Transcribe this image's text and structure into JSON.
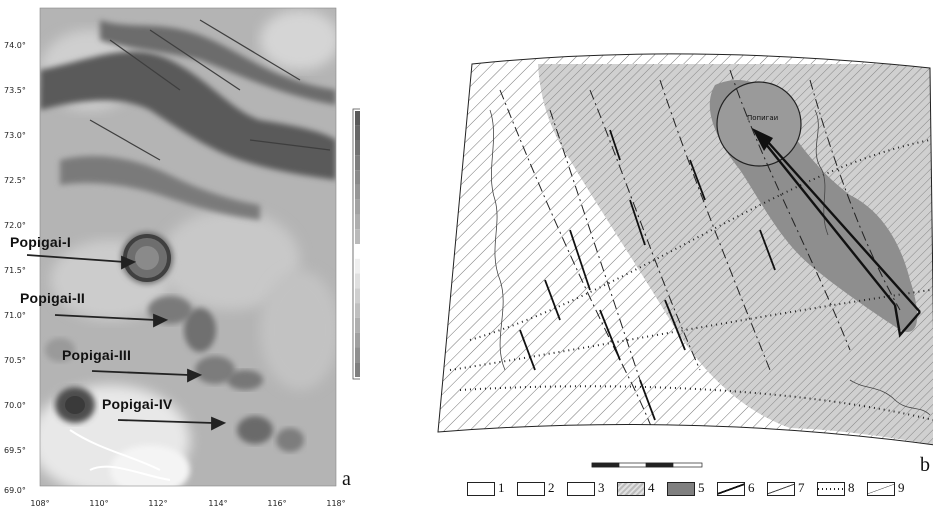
{
  "panel_a": {
    "letter": "a",
    "y_ticks": [
      "74.0°",
      "73.5°",
      "73.0°",
      "72.5°",
      "72.0°",
      "71.5°",
      "71.0°",
      "70.5°",
      "70.0°",
      "69.5°",
      "69.0°"
    ],
    "x_ticks": [
      "108°",
      "110°",
      "112°",
      "114°",
      "116°",
      "118°"
    ],
    "sites": [
      "Popigai-I",
      "Popigai-II",
      "Popigai-III",
      "Popigai-IV"
    ]
  },
  "panel_b": {
    "letter": "b",
    "crater_label": "Попигаи",
    "legend": [
      "1",
      "2",
      "3",
      "4",
      "5",
      "6",
      "7",
      "8",
      "9"
    ]
  }
}
